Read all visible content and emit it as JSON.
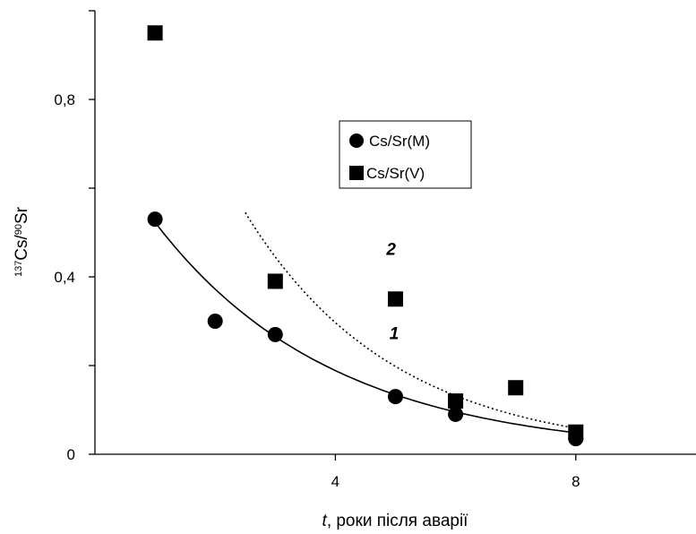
{
  "chart_data": {
    "type": "scatter",
    "title": "",
    "xlabel_italic": "t",
    "xlabel_rest": ", роки після аварії",
    "ylabel_sup1": "137",
    "ylabel_cs": "Cs/",
    "ylabel_sup2": "90",
    "ylabel_sr": "Sr",
    "xlim": [
      0,
      10
    ],
    "ylim": [
      0,
      1.0
    ],
    "x_ticks": [
      4,
      8
    ],
    "x_tick_labels": [
      "4",
      "8"
    ],
    "y_ticks": [
      0,
      0.2,
      0.4,
      0.6,
      0.8,
      1.0
    ],
    "y_tick_labels": [
      "0",
      "",
      "0,4",
      "",
      "0,8",
      ""
    ],
    "grid": false,
    "legend_position": "center-right",
    "series": [
      {
        "name": "Cs/Sr(M)",
        "marker": "circle",
        "x": [
          1,
          2,
          3,
          5,
          6,
          8
        ],
        "y": [
          0.53,
          0.3,
          0.27,
          0.13,
          0.09,
          0.035
        ]
      },
      {
        "name": "Cs/Sr(V)",
        "marker": "square",
        "x": [
          1,
          3,
          5,
          6,
          7,
          8
        ],
        "y": [
          0.95,
          0.39,
          0.35,
          0.12,
          0.15,
          0.05
        ]
      }
    ],
    "fits": [
      {
        "label": "1",
        "style": "solid",
        "x_start": 1,
        "x_end": 8,
        "a": 0.735,
        "k": 0.34
      },
      {
        "label": "2",
        "style": "dotted",
        "x_start": 2.5,
        "x_end": 8,
        "a": 1.5,
        "k": 0.405
      }
    ],
    "curve_labels": [
      {
        "text": "2",
        "x": 4.85,
        "y": 0.45
      },
      {
        "text": "1",
        "x": 4.9,
        "y": 0.26
      }
    ],
    "colors": {
      "markers": "#000000",
      "lines": "#000000"
    }
  }
}
